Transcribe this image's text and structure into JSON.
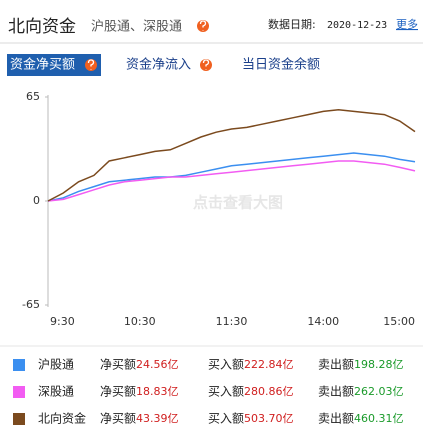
{
  "header": {
    "title": "北向资金",
    "subtitle": "沪股通、深股通",
    "date_label": "数据日期:",
    "date": "2020-12-23",
    "more": "更多"
  },
  "tabs": [
    "资金净买额",
    "资金净流入",
    "当日资金余额"
  ],
  "watermark": "点击查看大图",
  "chart_data": {
    "type": "line",
    "categories": [
      "9:30",
      null,
      null,
      null,
      null,
      null,
      "10:30",
      null,
      null,
      null,
      null,
      null,
      "11:30",
      null,
      null,
      null,
      null,
      null,
      "14:00",
      null,
      null,
      null,
      null,
      null,
      "15:00"
    ],
    "ylim": [
      -65,
      65
    ],
    "yticks": [
      65,
      0,
      -65
    ],
    "series": [
      {
        "name": "沪股通",
        "color": "#3b8ff0",
        "values": [
          0,
          2,
          6,
          9,
          12,
          13,
          14,
          15,
          15,
          16,
          18,
          20,
          22,
          23,
          24,
          25,
          26,
          27,
          28,
          29,
          30,
          29,
          28,
          26,
          24.56
        ]
      },
      {
        "name": "深股通",
        "color": "#f25cf2",
        "values": [
          0,
          1,
          4,
          7,
          10,
          12,
          13,
          14,
          15,
          15,
          16,
          17,
          18,
          19,
          20,
          21,
          22,
          23,
          24,
          25,
          25,
          24,
          23,
          21,
          18.83
        ]
      },
      {
        "name": "北向资金",
        "color": "#7b4a1e",
        "values": [
          0,
          5,
          12,
          16,
          25,
          27,
          29,
          31,
          32,
          36,
          40,
          43,
          45,
          46,
          48,
          50,
          52,
          54,
          56,
          57,
          56,
          55,
          54,
          50,
          43.39
        ]
      }
    ]
  },
  "summary": [
    {
      "net_label": "净买额",
      "net": "24.56亿",
      "buy_label": "买入额",
      "buy": "222.84亿",
      "sell_label": "卖出额",
      "sell": "198.28亿"
    },
    {
      "net_label": "净买额",
      "net": "18.83亿",
      "buy_label": "买入额",
      "buy": "280.86亿",
      "sell_label": "卖出额",
      "sell": "262.03亿"
    },
    {
      "net_label": "净买额",
      "net": "43.39亿",
      "buy_label": "买入额",
      "buy": "503.70亿",
      "sell_label": "卖出额",
      "sell": "460.31亿"
    }
  ]
}
